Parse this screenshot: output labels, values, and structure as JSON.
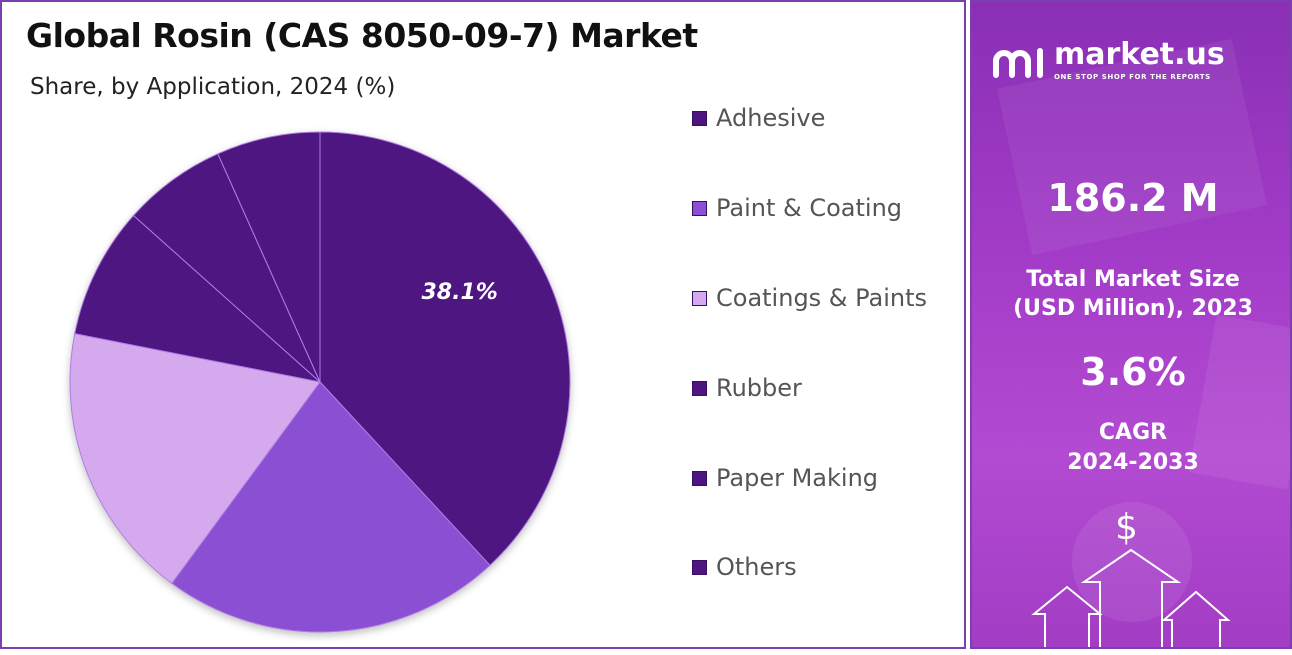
{
  "title": "Global Rosin (CAS 8050-09-7) Market",
  "subtitle": "Share, by Application, 2024 (%)",
  "chart_data": {
    "type": "pie",
    "title": "Global Rosin (CAS 8050-09-7) Market",
    "subtitle": "Share, by Application, 2024 (%)",
    "start": "top",
    "direction": "clockwise",
    "slices": [
      {
        "label": "Adhesive",
        "value": 38.1,
        "color": "#4e1580",
        "data_label": "38.1%"
      },
      {
        "label": "Paint & Coating",
        "value": 22.0,
        "color": "#8a4fd3"
      },
      {
        "label": "Coatings & Paints",
        "value": 18.0,
        "color": "#d4a9ee"
      },
      {
        "label": "Rubber",
        "value": 8.5,
        "color": "#4e1580"
      },
      {
        "label": "Paper Making",
        "value": 6.7,
        "color": "#4e1580"
      },
      {
        "label": "Others",
        "value": 6.7,
        "color": "#4e1580"
      }
    ],
    "legend_placement": "right"
  },
  "legend": [
    {
      "label": "Adhesive",
      "color": "#4e1580"
    },
    {
      "label": "Paint & Coating",
      "color": "#8a4fd3"
    },
    {
      "label": "Coatings & Paints",
      "color": "#d4a9ee"
    },
    {
      "label": "Rubber",
      "color": "#4e1580"
    },
    {
      "label": "Paper Making",
      "color": "#4e1580"
    },
    {
      "label": "Others",
      "color": "#4e1580"
    }
  ],
  "sidebar": {
    "brand_name": "market.us",
    "brand_tagline": "ONE STOP SHOP FOR THE REPORTS",
    "market_size_value": "186.2 M",
    "market_size_label_line1": "Total Market Size",
    "market_size_label_line2": "(USD Million), 2023",
    "cagr_value": "3.6%",
    "cagr_label_line1": "CAGR",
    "cagr_label_line2": "2024-2033",
    "dollar_symbol": "$",
    "accent_color": "#a33cc8"
  },
  "icons": [
    "market-us-logo-icon",
    "dollar-icon",
    "growth-arrows-icon"
  ]
}
